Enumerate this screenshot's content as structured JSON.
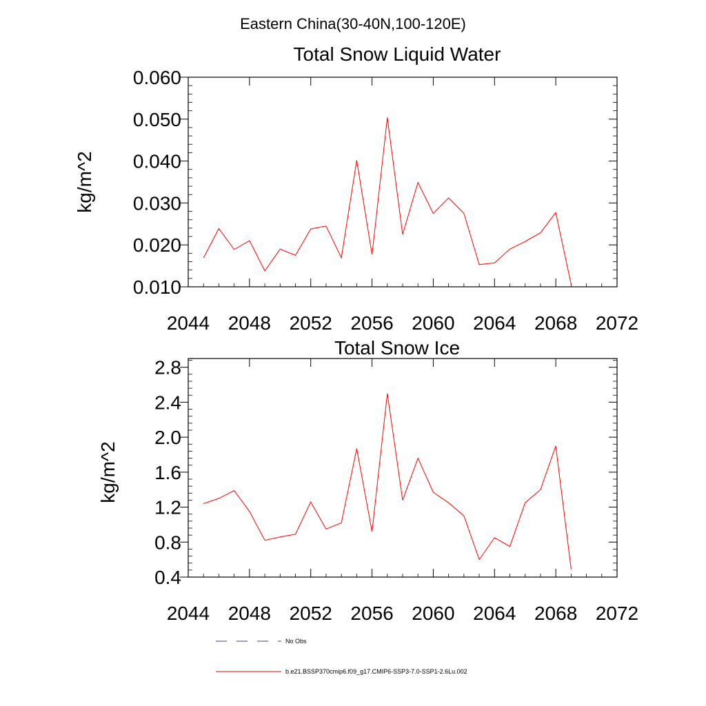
{
  "figure": {
    "super_title": "Eastern China(30-40N,100-120E)"
  },
  "chart_data": [
    {
      "type": "line",
      "title": "Total Snow Liquid Water",
      "xlabel": "",
      "ylabel": "kg/m^2",
      "xlim": [
        2044,
        2072
      ],
      "ylim": [
        0.01,
        0.06
      ],
      "xticks": [
        2044,
        2048,
        2052,
        2056,
        2060,
        2064,
        2068,
        2072
      ],
      "xtick_labels": [
        "2044",
        "2048",
        "2052",
        "2056",
        "2060",
        "2064",
        "2068",
        "2072"
      ],
      "yticks": [
        0.01,
        0.02,
        0.03,
        0.04,
        0.05,
        0.06
      ],
      "ytick_labels": [
        "0.010",
        "0.020",
        "0.030",
        "0.040",
        "0.050",
        "0.060"
      ],
      "grid": false,
      "series": [
        {
          "name": "b.e21.BSSP370cmip6.f09_g17.CMIP6-SSP3-7.0-SSP1-2.6Lu.002",
          "color": "#ff0000",
          "x": [
            2045,
            2046,
            2047,
            2048,
            2049,
            2050,
            2051,
            2052,
            2053,
            2054,
            2055,
            2056,
            2057,
            2058,
            2059,
            2060,
            2061,
            2062,
            2063,
            2064,
            2065,
            2066,
            2067,
            2068,
            2069
          ],
          "y": [
            0.0169,
            0.0239,
            0.0189,
            0.021,
            0.0138,
            0.019,
            0.0175,
            0.0238,
            0.0245,
            0.0169,
            0.0402,
            0.0177,
            0.0504,
            0.0225,
            0.0349,
            0.0275,
            0.0312,
            0.0275,
            0.0153,
            0.0157,
            0.019,
            0.0208,
            0.0229,
            0.0277,
            0.0106
          ]
        }
      ]
    },
    {
      "type": "line",
      "title": "Total Snow Ice",
      "xlabel": "",
      "ylabel": "kg/m^2",
      "xlim": [
        2044,
        2072
      ],
      "ylim": [
        0.4,
        2.9
      ],
      "xticks": [
        2044,
        2048,
        2052,
        2056,
        2060,
        2064,
        2068,
        2072
      ],
      "xtick_labels": [
        "2044",
        "2048",
        "2052",
        "2056",
        "2060",
        "2064",
        "2068",
        "2072"
      ],
      "yticks": [
        0.4,
        0.8,
        1.2,
        1.6,
        2.0,
        2.4,
        2.8
      ],
      "ytick_labels": [
        "0.4",
        "0.8",
        "1.2",
        "1.6",
        "2.0",
        "2.4",
        "2.8"
      ],
      "grid": false,
      "series": [
        {
          "name": "b.e21.BSSP370cmip6.f09_g17.CMIP6-SSP3-7.0-SSP1-2.6Lu.002",
          "color": "#ff0000",
          "x": [
            2045,
            2046,
            2047,
            2048,
            2049,
            2050,
            2051,
            2052,
            2053,
            2054,
            2055,
            2056,
            2057,
            2058,
            2059,
            2060,
            2061,
            2062,
            2063,
            2064,
            2065,
            2066,
            2067,
            2068,
            2069
          ],
          "y": [
            1.24,
            1.3,
            1.39,
            1.15,
            0.82,
            0.86,
            0.89,
            1.26,
            0.95,
            1.02,
            1.87,
            0.92,
            2.5,
            1.28,
            1.76,
            1.37,
            1.25,
            1.1,
            0.6,
            0.85,
            0.75,
            1.25,
            1.4,
            1.9,
            0.49
          ]
        }
      ]
    }
  ],
  "legend": {
    "placement": "bottom",
    "items": [
      {
        "label": "No Obs",
        "style": "dashed",
        "color": "#3b3b8f"
      },
      {
        "label": "b.e21.BSSP370cmip6.f09_g17.CMIP6-SSP3-7.0-SSP1-2.6Lu.002",
        "style": "solid",
        "color": "#ff0000"
      }
    ]
  }
}
